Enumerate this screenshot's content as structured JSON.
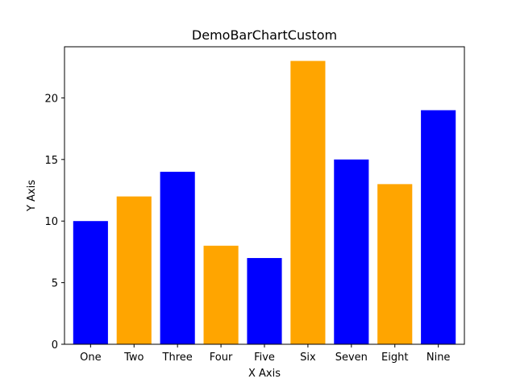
{
  "chart_data": {
    "type": "bar",
    "title": "DemoBarChartCustom",
    "xlabel": "X Axis",
    "ylabel": "Y Axis",
    "categories": [
      "One",
      "Two",
      "Three",
      "Four",
      "Five",
      "Six",
      "Seven",
      "Eight",
      "Nine"
    ],
    "values": [
      10,
      12,
      14,
      8,
      7,
      23,
      15,
      13,
      19
    ],
    "bar_colors": [
      "#0000ff",
      "#ffa500",
      "#0000ff",
      "#ffa500",
      "#0000ff",
      "#ffa500",
      "#0000ff",
      "#ffa500",
      "#0000ff"
    ],
    "ylim": [
      0,
      24.15
    ],
    "yticks": [
      0,
      5,
      10,
      15,
      20
    ],
    "grid": false,
    "legend": "none"
  }
}
